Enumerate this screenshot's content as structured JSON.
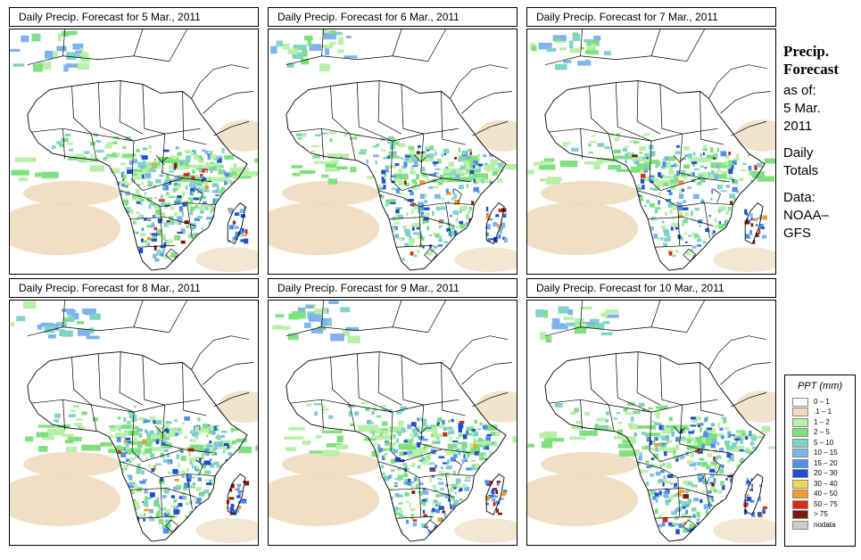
{
  "panels": [
    {
      "title": "Daily Precip. Forecast for  5 Mar., 2011",
      "seed": 5,
      "wet": 1.0
    },
    {
      "title": "Daily Precip. Forecast for  6 Mar., 2011",
      "seed": 6,
      "wet": 0.8
    },
    {
      "title": "Daily Precip. Forecast for  7 Mar., 2011",
      "seed": 7,
      "wet": 0.7
    },
    {
      "title": "Daily Precip. Forecast for  8 Mar., 2011",
      "seed": 8,
      "wet": 0.9
    },
    {
      "title": "Daily Precip. Forecast for  9 Mar., 2011",
      "seed": 9,
      "wet": 0.85
    },
    {
      "title": "Daily Precip. Forecast for  10 Mar., 2011",
      "seed": 10,
      "wet": 0.9
    }
  ],
  "sidebar": {
    "title_line1": "Precip.",
    "title_line2": "Forecast",
    "asof_line1": "as of:",
    "asof_line2": "5 Mar.",
    "asof_line3": "2011",
    "totals_line1": "Daily",
    "totals_line2": "Totals",
    "data_line1": "Data:",
    "data_line2": "NOAA–",
    "data_line3": "GFS"
  },
  "legend": {
    "title": "PPT (mm)",
    "items": [
      {
        "label": "0 – 1",
        "color": "#ffffff"
      },
      {
        "label": ".1 – 1",
        "color": "#eedcbf"
      },
      {
        "label": "1 – 2",
        "color": "#b8f0a8"
      },
      {
        "label": "2 – 5",
        "color": "#7fe07f"
      },
      {
        "label": "5 – 10",
        "color": "#7fd3c8"
      },
      {
        "label": "10 – 15",
        "color": "#7fb2ee"
      },
      {
        "label": "15 – 20",
        "color": "#4f8fe8"
      },
      {
        "label": "20 – 30",
        "color": "#1f4fcc"
      },
      {
        "label": "30 – 40",
        "color": "#f5d45a"
      },
      {
        "label": "40 – 50",
        "color": "#f59a2a"
      },
      {
        "label": "50 – 75",
        "color": "#d62a1a"
      },
      {
        "label": "> 75",
        "color": "#7a1a0a"
      },
      {
        "label": "nodata",
        "color": "#cccccc"
      }
    ]
  }
}
